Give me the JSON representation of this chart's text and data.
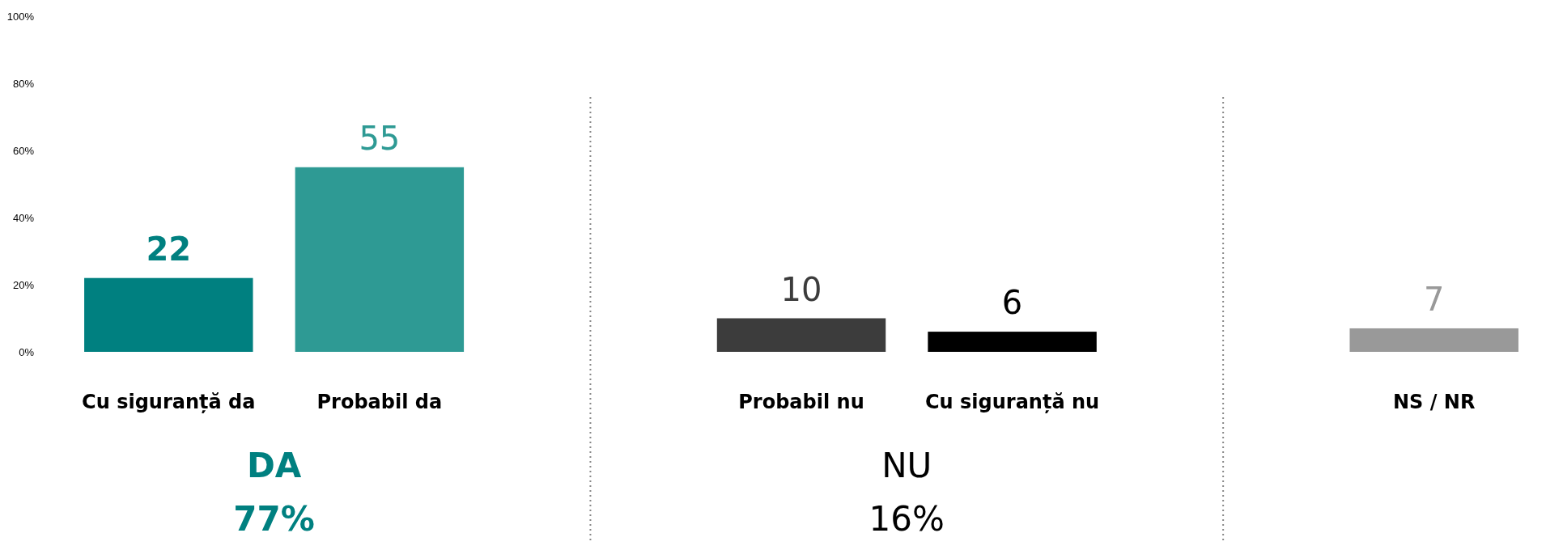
{
  "chart_data": {
    "type": "bar",
    "categories": [
      "Cu siguranță da",
      "Probabil da",
      null,
      "Probabil nu",
      "Cu siguranță nu",
      null,
      "NS / NR"
    ],
    "values": [
      22,
      55,
      null,
      10,
      6,
      null,
      7
    ],
    "colors": [
      "#008080",
      "#2e9a94",
      "#888888",
      "#3c3c3c",
      "#000000",
      "#888888",
      "#999999"
    ],
    "ylim": [
      0,
      100
    ],
    "yticks": [
      {
        "value": 0,
        "label": "0%"
      },
      {
        "value": 20,
        "label": "20%"
      },
      {
        "value": 40,
        "label": "40%"
      },
      {
        "value": 60,
        "label": "60%"
      },
      {
        "value": 80,
        "label": "80%"
      },
      {
        "value": 100,
        "label": "100%"
      }
    ],
    "grid": "x",
    "data_labels": true,
    "annotations": [
      "DA",
      "77%",
      "NU",
      "16%"
    ]
  }
}
